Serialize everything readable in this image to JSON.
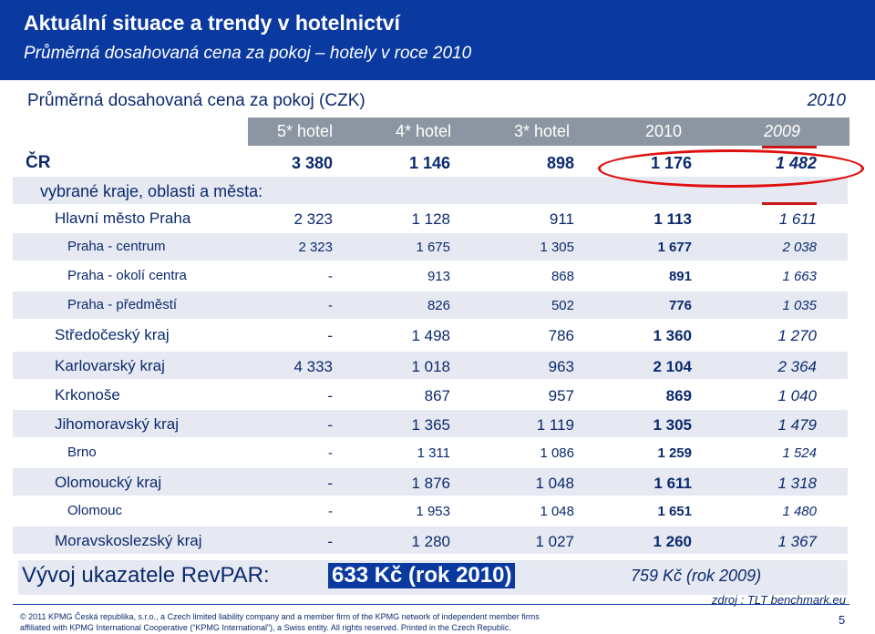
{
  "header": {
    "title": "Aktuální situace a trendy v hotelnictví",
    "subtitle": "Průměrná dosahovaná cena za pokoj – hotely v roce 2010"
  },
  "table": {
    "caption": "Průměrná dosahovaná cena za pokoj (CZK)",
    "year": "2010",
    "columns": [
      "5* hotel",
      "4* hotel",
      "3* hotel",
      "2010",
      "2009"
    ],
    "rows": [
      {
        "label": "ČR",
        "values": [
          "3 380",
          "1 146",
          "898",
          "1 176",
          "1 482"
        ],
        "style": "cr"
      },
      {
        "label": "vybrané kraje, oblasti a města:",
        "values": [],
        "style": "section"
      },
      {
        "label": "Hlavní město Praha",
        "values": [
          "2 323",
          "1 128",
          "911",
          "1 113",
          "1 611"
        ],
        "style": "main"
      },
      {
        "label": "Praha - centrum",
        "values": [
          "2 323",
          "1 675",
          "1 305",
          "1 677",
          "2 038"
        ],
        "style": "sub"
      },
      {
        "label": "Praha - okolí centra",
        "values": [
          "-",
          "913",
          "868",
          "891",
          "1 663"
        ],
        "style": "sub"
      },
      {
        "label": "Praha - předměstí",
        "values": [
          "-",
          "826",
          "502",
          "776",
          "1 035"
        ],
        "style": "sub"
      },
      {
        "label": "Středočeský kraj",
        "values": [
          "-",
          "1 498",
          "786",
          "1 360",
          "1 270"
        ],
        "style": "main"
      },
      {
        "label": "Karlovarský kraj",
        "values": [
          "4 333",
          "1 018",
          "963",
          "2 104",
          "2 364"
        ],
        "style": "main"
      },
      {
        "label": "Krkonoše",
        "values": [
          "-",
          "867",
          "957",
          "869",
          "1 040"
        ],
        "style": "main"
      },
      {
        "label": "Jihomoravský kraj",
        "values": [
          "-",
          "1 365",
          "1 119",
          "1 305",
          "1 479"
        ],
        "style": "main"
      },
      {
        "label": "Brno",
        "values": [
          "-",
          "1 311",
          "1 086",
          "1 259",
          "1 524"
        ],
        "style": "sub"
      },
      {
        "label": "Olomoucký kraj",
        "values": [
          "-",
          "1 876",
          "1 048",
          "1 611",
          "1 318"
        ],
        "style": "main"
      },
      {
        "label": "Olomouc",
        "values": [
          "-",
          "1 953",
          "1 048",
          "1 651",
          "1 480"
        ],
        "style": "sub"
      },
      {
        "label": "Moravskoslezský kraj",
        "values": [
          "-",
          "1 280",
          "1 027",
          "1 260",
          "1 367"
        ],
        "style": "main"
      }
    ]
  },
  "revpar": {
    "label": "Vývoj ukazatele RevPAR:",
    "value_2010": "633 Kč (rok 2010)",
    "value_2009": "759 Kč (rok 2009)"
  },
  "source": "zdroj : TLT benchmark.eu",
  "footer": {
    "line1": "© 2011 KPMG Česká republika, s.r.o., a Czech limited liability company and a member firm of the KPMG network of independent member firms",
    "line2": "affiliated with KPMG International Cooperative (“KPMG International”), a Swiss entity. All rights reserved. Printed in the Czech Republic.",
    "page": "5"
  },
  "colors": {
    "brand_blue": "#0a3aa0",
    "header_gray": "#8c96a2",
    "highlight_red": "#e01010",
    "row_band": "#e6e9f2"
  }
}
